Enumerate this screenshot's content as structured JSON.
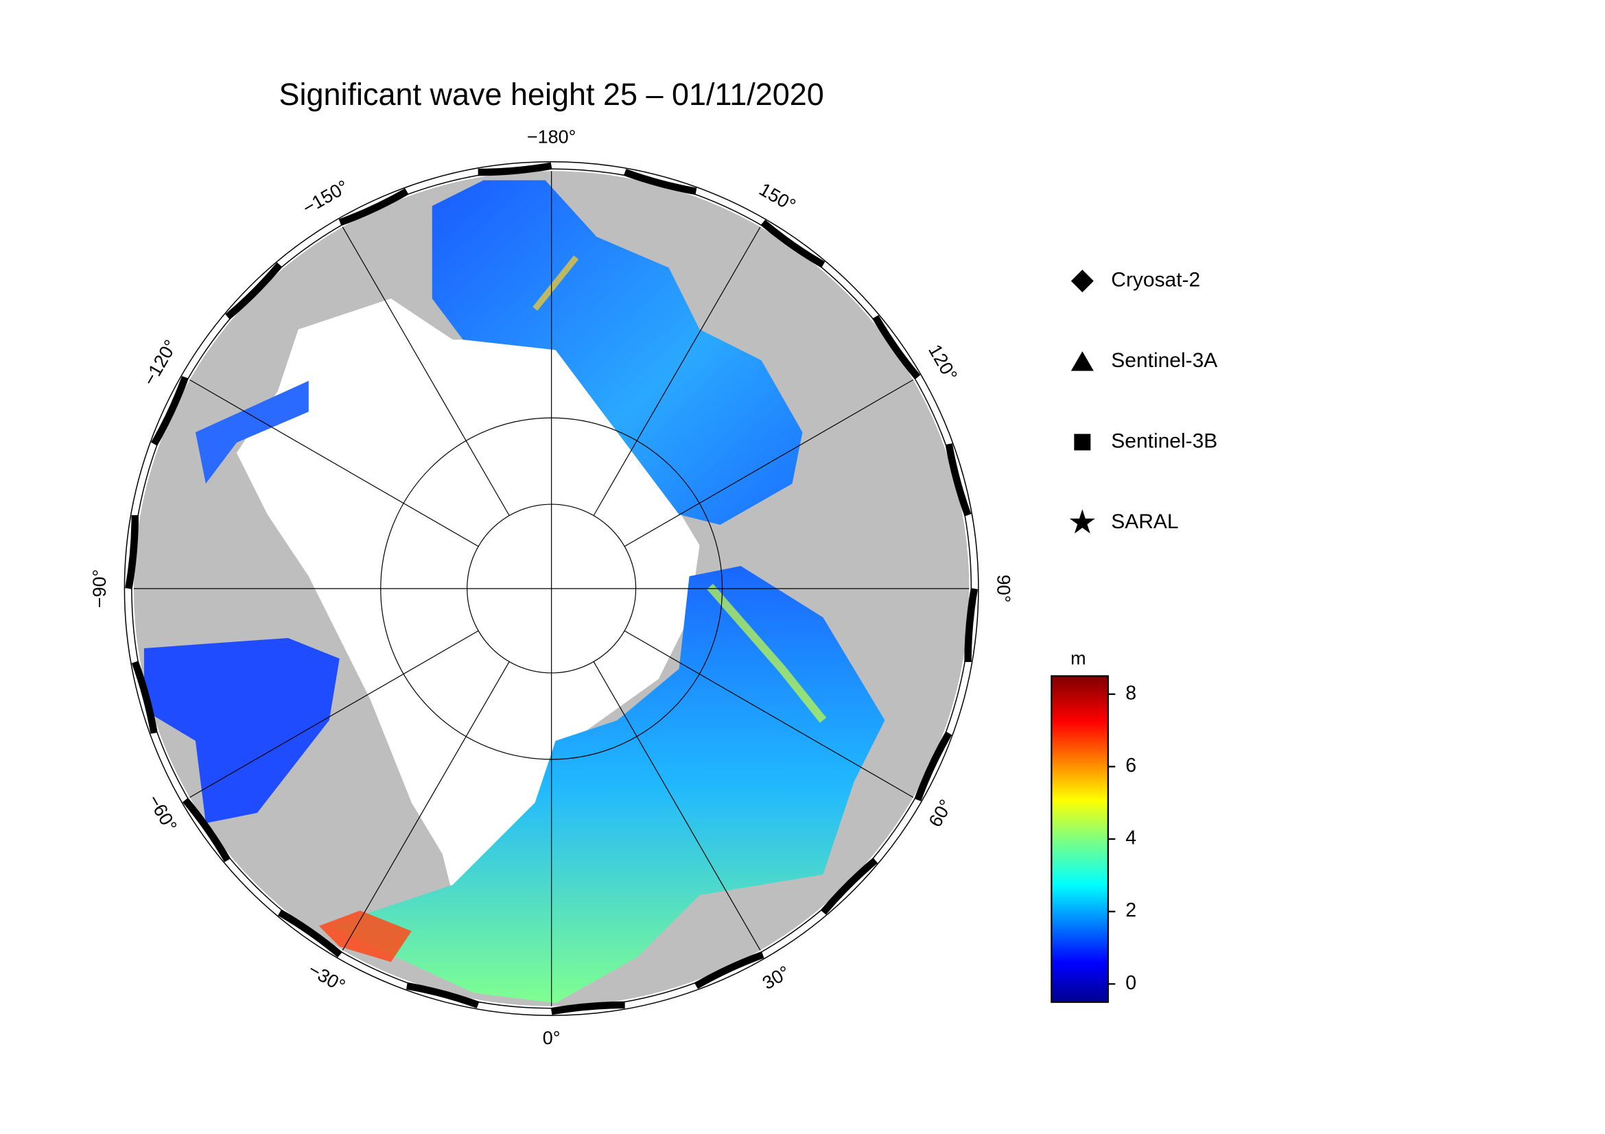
{
  "map": {
    "title": "Significant wave height 25 – 01/11/2020",
    "lon_labels": [
      {
        "value": -180,
        "label": "−180°"
      },
      {
        "value": 150,
        "label": "150°"
      },
      {
        "value": 120,
        "label": "120°"
      },
      {
        "value": 90,
        "label": "90°"
      },
      {
        "value": 60,
        "label": "60°"
      },
      {
        "value": 30,
        "label": "30°"
      },
      {
        "value": 0,
        "label": "0°"
      },
      {
        "value": -30,
        "label": "−30°"
      },
      {
        "value": -60,
        "label": "−60°"
      },
      {
        "value": -90,
        "label": "−90°"
      },
      {
        "value": -120,
        "label": "−120°"
      },
      {
        "value": -150,
        "label": "−150°"
      }
    ],
    "legend": [
      {
        "name": "Cryosat-2",
        "marker": "diamond"
      },
      {
        "name": "Sentinel-3A",
        "marker": "triangle"
      },
      {
        "name": "Sentinel-3B",
        "marker": "square"
      },
      {
        "name": "SARAL",
        "marker": "star"
      }
    ],
    "colorbar": {
      "label": "m",
      "ylim": [
        -0.5,
        8.5
      ],
      "yticks": [
        0,
        2,
        4,
        6,
        8
      ]
    }
  }
}
